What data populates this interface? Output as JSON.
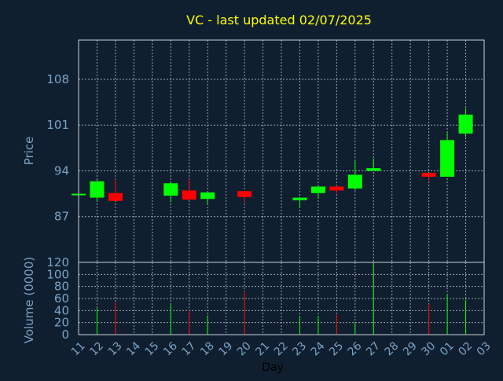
{
  "chart_data": {
    "type": "candlestick",
    "title": "VC - last updated 02/07/2025",
    "xlabel": "Day",
    "x_ticks": [
      "11",
      "12",
      "13",
      "14",
      "15",
      "16",
      "17",
      "18",
      "19",
      "20",
      "21",
      "22",
      "23",
      "24",
      "25",
      "26",
      "27",
      "28",
      "29",
      "30",
      "01",
      "02",
      "03"
    ],
    "colors": {
      "up": "#00ff00",
      "down": "#ff0000",
      "background": "#0f1f2f",
      "title": "#ffff00",
      "axis_text": "#7ba2c6"
    },
    "price_panel": {
      "ylabel": "Price",
      "ylim": [
        80,
        114
      ],
      "yticks": [
        87,
        94,
        101,
        108
      ],
      "grid": true,
      "candles": [
        {
          "day": "11",
          "open": 90.5,
          "high": 90.5,
          "low": 90.5,
          "close": 90.5
        },
        {
          "day": "12",
          "open": 89.9,
          "high": 92.6,
          "low": 89.4,
          "close": 92.4
        },
        {
          "day": "13",
          "open": 90.6,
          "high": 92.7,
          "low": 89.4,
          "close": 89.4
        },
        {
          "day": "16",
          "open": 90.2,
          "high": 92.4,
          "low": 89.2,
          "close": 92.1
        },
        {
          "day": "17",
          "open": 91.0,
          "high": 92.7,
          "low": 89.6,
          "close": 89.6
        },
        {
          "day": "18",
          "open": 89.7,
          "high": 90.7,
          "low": 88.9,
          "close": 90.7
        },
        {
          "day": "20",
          "open": 90.9,
          "high": 90.9,
          "low": 89.2,
          "close": 90.0
        },
        {
          "day": "23",
          "open": 89.5,
          "high": 90.0,
          "low": 88.3,
          "close": 89.9
        },
        {
          "day": "24",
          "open": 90.6,
          "high": 91.7,
          "low": 89.8,
          "close": 91.6
        },
        {
          "day": "25",
          "open": 91.6,
          "high": 91.8,
          "low": 90.6,
          "close": 91.0
        },
        {
          "day": "26",
          "open": 91.3,
          "high": 95.5,
          "low": 91.0,
          "close": 93.4
        },
        {
          "day": "27",
          "open": 94.0,
          "high": 95.9,
          "low": 94.0,
          "close": 94.4
        },
        {
          "day": "30",
          "open": 93.7,
          "high": 93.7,
          "low": 92.5,
          "close": 93.1
        },
        {
          "day": "01",
          "open": 93.1,
          "high": 99.8,
          "low": 93.1,
          "close": 98.7
        },
        {
          "day": "02",
          "open": 99.7,
          "high": 103.6,
          "low": 99.2,
          "close": 102.6
        }
      ]
    },
    "volume_panel": {
      "ylabel": "Volume (0000)",
      "ylim": [
        0,
        120
      ],
      "yticks": [
        0,
        20,
        40,
        60,
        80,
        100,
        120
      ],
      "grid": true,
      "bars": [
        {
          "day": "12",
          "value": 44,
          "direction": "up"
        },
        {
          "day": "13",
          "value": 53,
          "direction": "down"
        },
        {
          "day": "16",
          "value": 51,
          "direction": "up"
        },
        {
          "day": "17",
          "value": 41,
          "direction": "down"
        },
        {
          "day": "18",
          "value": 32,
          "direction": "up"
        },
        {
          "day": "20",
          "value": 72,
          "direction": "down"
        },
        {
          "day": "23",
          "value": 31,
          "direction": "up"
        },
        {
          "day": "24",
          "value": 31,
          "direction": "up"
        },
        {
          "day": "25",
          "value": 33,
          "direction": "down"
        },
        {
          "day": "26",
          "value": 20,
          "direction": "up"
        },
        {
          "day": "27",
          "value": 120,
          "direction": "up"
        },
        {
          "day": "30",
          "value": 51,
          "direction": "down"
        },
        {
          "day": "01",
          "value": 66,
          "direction": "up"
        },
        {
          "day": "02",
          "value": 58,
          "direction": "up"
        }
      ]
    }
  }
}
